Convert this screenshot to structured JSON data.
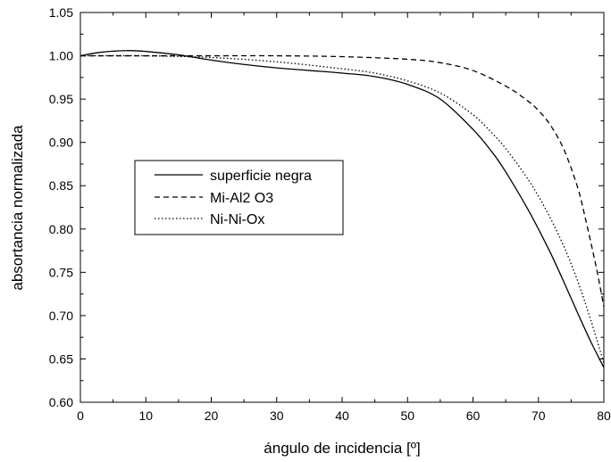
{
  "chart_data": {
    "type": "line",
    "title": "",
    "xlabel": "ángulo de incidencia [º]",
    "ylabel": "absortancia normalizada",
    "xlim": [
      0,
      80
    ],
    "ylim": [
      0.6,
      1.05
    ],
    "x_ticks": [
      "0",
      "10",
      "20",
      "30",
      "40",
      "50",
      "60",
      "70",
      "80"
    ],
    "y_ticks": [
      "0.60",
      "0.65",
      "0.70",
      "0.75",
      "0.80",
      "0.85",
      "0.90",
      "0.95",
      "1.00",
      "1.05"
    ],
    "grid": false,
    "legend_position": "center-left",
    "series": [
      {
        "name": "superficie negra",
        "line_style": "solid",
        "x": [
          0,
          3,
          7,
          10,
          15,
          20,
          25,
          30,
          35,
          40,
          45,
          50,
          55,
          60,
          63,
          65,
          68,
          70,
          72,
          74,
          76,
          78,
          80
        ],
        "y": [
          1.0,
          1.004,
          1.006,
          1.005,
          1.001,
          0.995,
          0.99,
          0.986,
          0.983,
          0.98,
          0.976,
          0.967,
          0.95,
          0.915,
          0.888,
          0.866,
          0.828,
          0.8,
          0.77,
          0.737,
          0.703,
          0.67,
          0.64
        ]
      },
      {
        "name": "Mi-Al2 O3",
        "line_style": "dashed",
        "x": [
          0,
          10,
          20,
          30,
          40,
          50,
          55,
          60,
          65,
          68,
          70,
          72,
          74,
          76,
          77,
          78,
          79,
          80
        ],
        "y": [
          1.0,
          1.0,
          1.0,
          1.0,
          0.999,
          0.996,
          0.992,
          0.983,
          0.965,
          0.95,
          0.937,
          0.918,
          0.89,
          0.848,
          0.818,
          0.785,
          0.75,
          0.71
        ]
      },
      {
        "name": "Ni-Ni-Ox",
        "line_style": "dotted",
        "x": [
          0,
          10,
          20,
          30,
          40,
          45,
          50,
          55,
          60,
          63,
          65,
          68,
          70,
          72,
          74,
          76,
          78,
          80
        ],
        "y": [
          1.0,
          1.0,
          0.998,
          0.993,
          0.985,
          0.98,
          0.971,
          0.957,
          0.932,
          0.91,
          0.893,
          0.862,
          0.838,
          0.81,
          0.778,
          0.74,
          0.695,
          0.645
        ]
      }
    ]
  }
}
